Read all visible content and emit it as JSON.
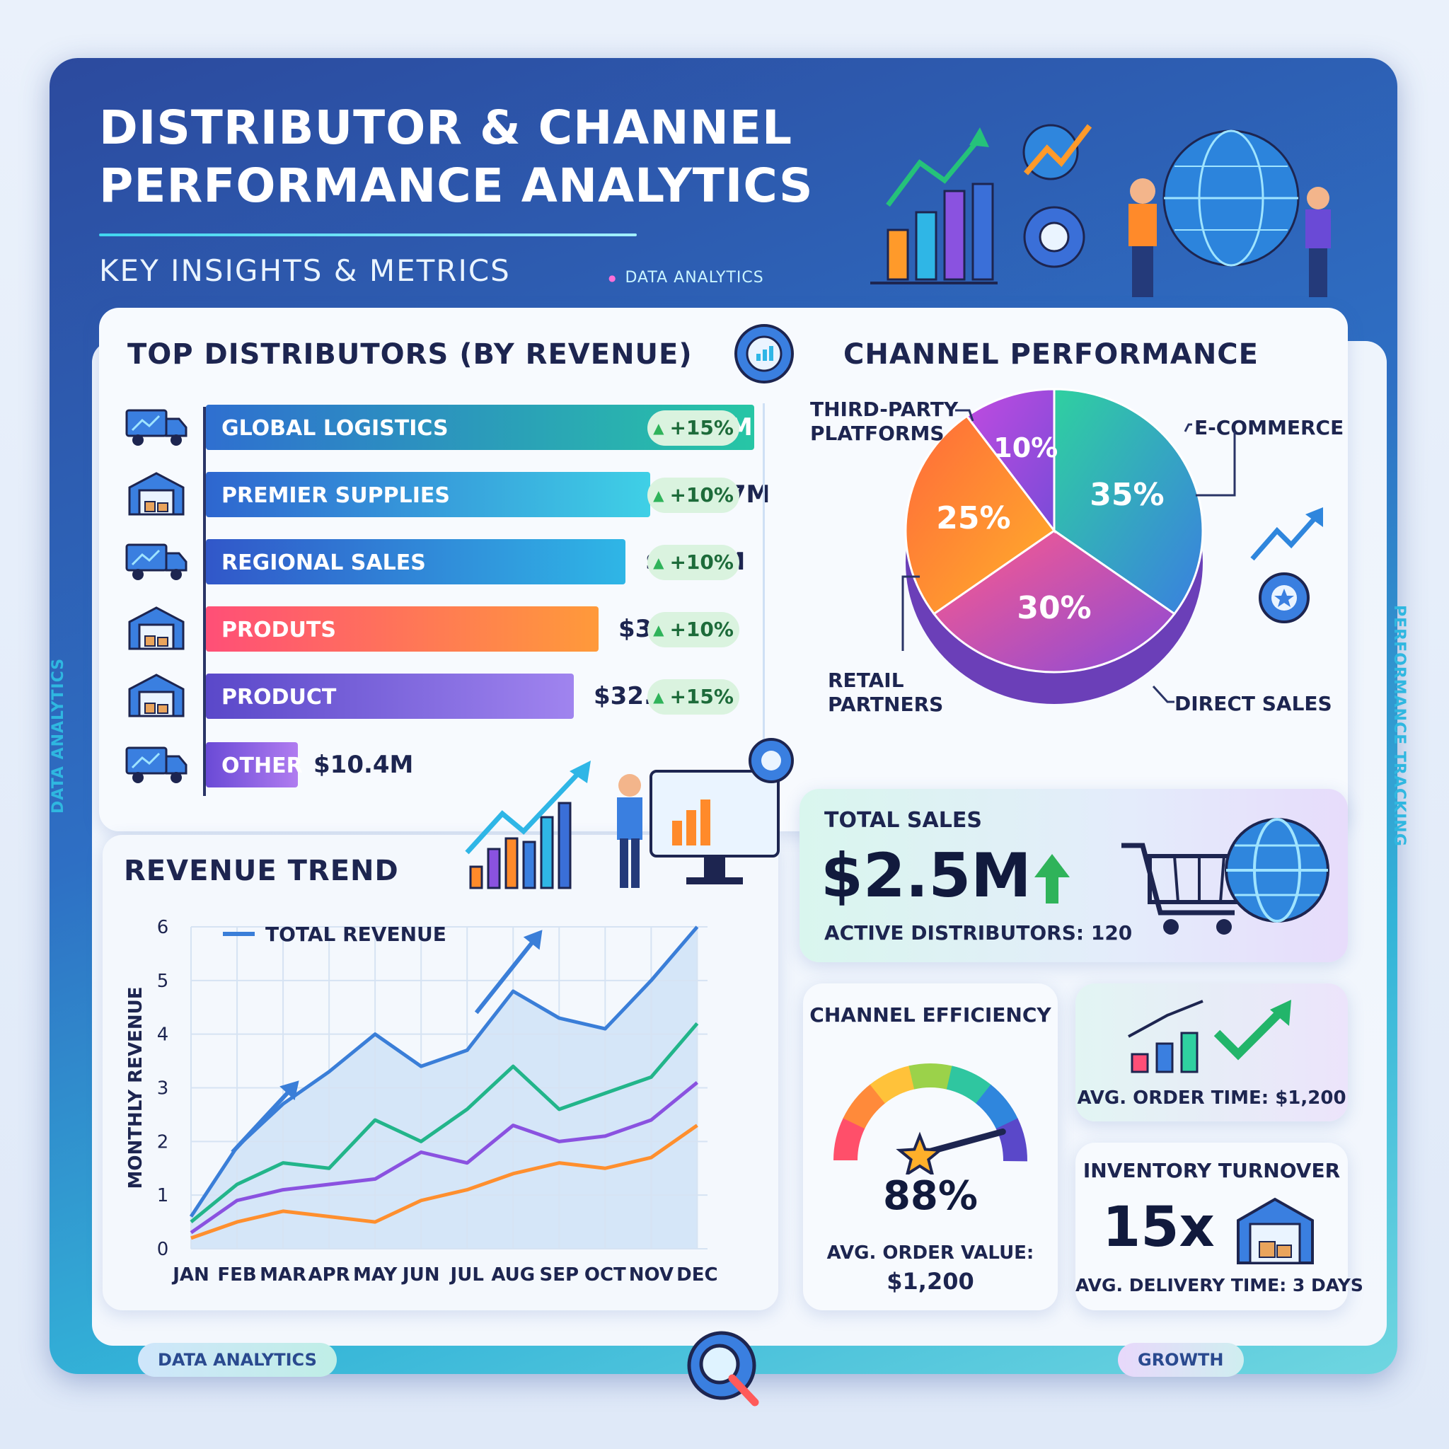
{
  "header": {
    "title_line1": "DISTRIBUTOR & CHANNEL",
    "title_line2": "PERFORMANCE ANALYTICS",
    "subtitle": "KEY INSIGHTS & METRICS",
    "tag": "DATA ANALYTICS"
  },
  "side_labels": {
    "left": "DATA ANALYTICS",
    "right": "PERFORMANCE TRACKING"
  },
  "footer": {
    "left_pill": "DATA ANALYTICS",
    "right_pill": "GROWTH"
  },
  "distributors": {
    "title": "TOP DISTRIBUTORS (BY REVENUE)",
    "items": [
      {
        "name": "GLOBAL LOGISTICS",
        "value": "$2.5M",
        "change": "+15%",
        "icon": "truck-icon",
        "color_from": "#2f6fd0",
        "color_to": "#27c6a5"
      },
      {
        "name": "PREMIER SUPPLIES",
        "value": "$20.7M",
        "change": "+10%",
        "icon": "warehouse-icon",
        "color_from": "#2e66cf",
        "color_to": "#3fd0e6"
      },
      {
        "name": "REGIONAL SALES",
        "value": "$20.9M",
        "change": "+10%",
        "icon": "truck-icon",
        "color_from": "#3157c9",
        "color_to": "#2fb6e6"
      },
      {
        "name": "PRODUTS",
        "value": "$36.8M",
        "change": "+10%",
        "icon": "warehouse-icon",
        "color_from": "#ff4f77",
        "color_to": "#ff9a3a"
      },
      {
        "name": "PRODUCT",
        "value": "$32.8M",
        "change": "+15%",
        "icon": "warehouse-icon",
        "color_from": "#5a48c9",
        "color_to": "#a084ef"
      },
      {
        "name": "OTHER",
        "value": "$10.4M",
        "change": "",
        "icon": "truck-icon",
        "color_from": "#6a4ad6",
        "color_to": "#b07cf0"
      }
    ]
  },
  "channel": {
    "title": "CHANNEL PERFORMANCE"
  },
  "kpis": {
    "total_sales_label": "TOTAL SALES",
    "total_sales_value": "$2.5M",
    "active_distributors": "ACTIVE DISTRIBUTORS: 120",
    "channel_efficiency_label": "CHANNEL EFFICIENCY",
    "channel_efficiency_value": "88%",
    "channel_efficiency_level": 0.88,
    "avg_order_value_label": "AVG. ORDER VALUE:",
    "avg_order_value": "$1,200",
    "avg_order_time": "AVG. ORDER TIME: $1,200",
    "inventory_label": "INVENTORY TURNOVER",
    "inventory_value": "15x",
    "avg_delivery": "AVG. DELIVERY TIME: 3 DAYS"
  },
  "colors": {
    "ecommerce": "#3a8be0",
    "direct_sales": "#e14aa8",
    "retail": "#ff8a2a",
    "third_party": "#8a4bd8",
    "total_revenue": "#3a7ed8",
    "green_series": "#22b58a",
    "purple_series": "#8a52e0",
    "orange_series": "#ff8f2e"
  },
  "chart_data": [
    {
      "type": "pie",
      "title": "CHANNEL PERFORMANCE",
      "slices": [
        {
          "label": "E-COMMERCE",
          "value": 35,
          "display": "35%"
        },
        {
          "label": "DIRECT SALES",
          "value": 30,
          "display": "30%"
        },
        {
          "label": "RETAIL PARTNERS",
          "value": 25,
          "display": "25%"
        },
        {
          "label": "THIRD-PARTY PLATFORMS",
          "value": 10,
          "display": "10%"
        }
      ]
    },
    {
      "type": "line",
      "title": "REVENUE TREND",
      "xlabel": "",
      "ylabel": "MONTHLY REVENUE",
      "ylim": [
        0,
        6
      ],
      "yticks": [
        "0",
        "1",
        "2",
        "3",
        "4",
        "5",
        "6"
      ],
      "categories": [
        "JAN",
        "FEB",
        "MAR",
        "APR",
        "MAY",
        "JUN",
        "JUL",
        "AUG",
        "SEP",
        "OCT",
        "NOV",
        "DEC"
      ],
      "legend": "TOTAL REVENUE",
      "series": [
        {
          "name": "TOTAL REVENUE",
          "values": [
            0.6,
            1.9,
            2.7,
            3.3,
            4.0,
            3.4,
            3.7,
            4.8,
            4.3,
            4.1,
            5.0,
            6.0
          ]
        },
        {
          "values": [
            0.5,
            1.2,
            1.6,
            1.5,
            2.4,
            2.0,
            2.6,
            3.4,
            2.6,
            2.9,
            3.2,
            4.2
          ]
        },
        {
          "values": [
            0.3,
            0.9,
            1.1,
            1.2,
            1.3,
            1.8,
            1.6,
            2.3,
            2.0,
            2.1,
            2.4,
            3.1
          ]
        },
        {
          "values": [
            0.2,
            0.5,
            0.7,
            0.6,
            0.5,
            0.9,
            1.1,
            1.4,
            1.6,
            1.5,
            1.7,
            2.3
          ]
        }
      ]
    }
  ]
}
